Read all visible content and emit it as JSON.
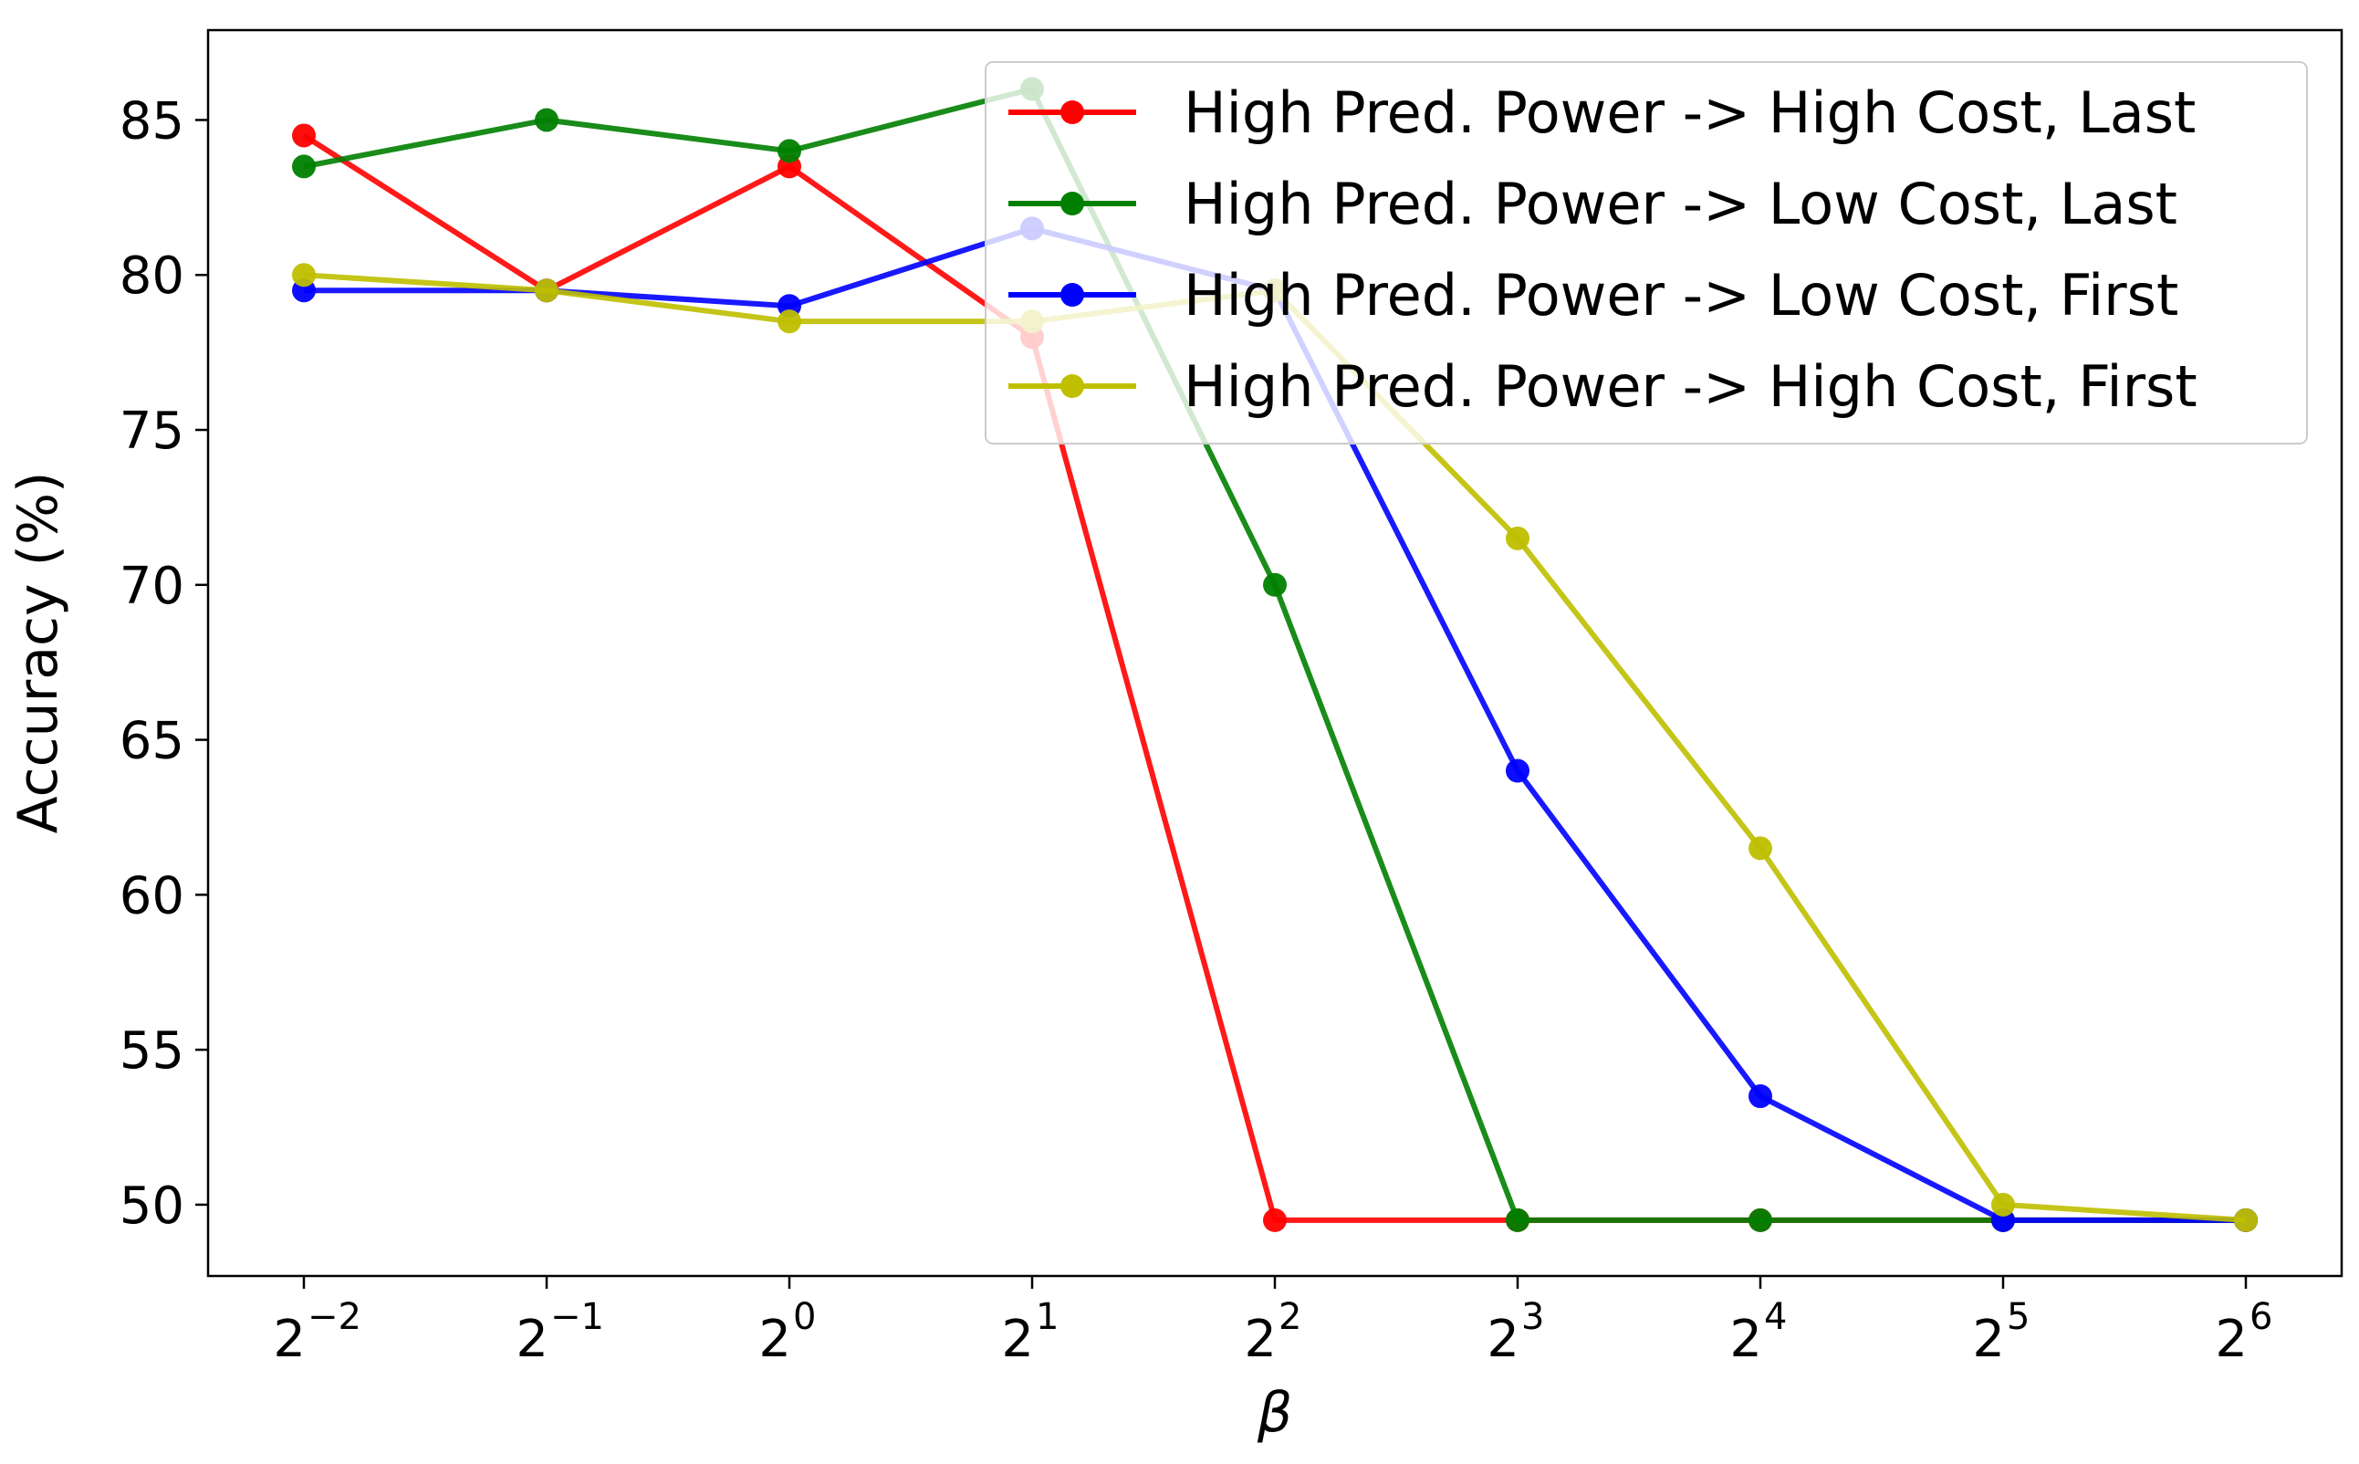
{
  "chart_data": {
    "type": "line",
    "title": "",
    "xlabel": "β",
    "ylabel": "Accuracy (%)",
    "x": [
      -2,
      -1,
      0,
      1,
      2,
      3,
      4,
      5,
      6
    ],
    "x_scale": "log2",
    "x_tick_labels": [
      {
        "base": "2",
        "exp": "−2"
      },
      {
        "base": "2",
        "exp": "−1"
      },
      {
        "base": "2",
        "exp": "0"
      },
      {
        "base": "2",
        "exp": "1"
      },
      {
        "base": "2",
        "exp": "2"
      },
      {
        "base": "2",
        "exp": "3"
      },
      {
        "base": "2",
        "exp": "4"
      },
      {
        "base": "2",
        "exp": "5"
      },
      {
        "base": "2",
        "exp": "6"
      }
    ],
    "y_ticks": [
      "50",
      "55",
      "60",
      "65",
      "70",
      "75",
      "80",
      "85"
    ],
    "ylim": [
      47.7,
      87.9
    ],
    "grid": false,
    "legend_position": "top-right",
    "series": [
      {
        "name": "High Pred. Power -> High Cost, Last",
        "color": "#ff0000",
        "values": [
          84.5,
          79.5,
          83.5,
          78.0,
          49.5,
          49.5,
          49.5,
          49.5,
          49.5
        ]
      },
      {
        "name": "High Pred. Power -> Low Cost, Last",
        "color": "#008000",
        "values": [
          83.5,
          85.0,
          84.0,
          86.0,
          70.0,
          49.5,
          49.5,
          49.5,
          49.5
        ]
      },
      {
        "name": "High Pred. Power -> Low Cost, First",
        "color": "#0000ff",
        "values": [
          79.5,
          79.5,
          79.0,
          81.5,
          79.5,
          64.0,
          53.5,
          49.5,
          49.5
        ]
      },
      {
        "name": "High Pred. Power -> High Cost, First",
        "color": "#bfbf00",
        "values": [
          80.0,
          79.5,
          78.5,
          78.5,
          79.5,
          71.5,
          61.5,
          50.0,
          49.5
        ]
      }
    ]
  }
}
